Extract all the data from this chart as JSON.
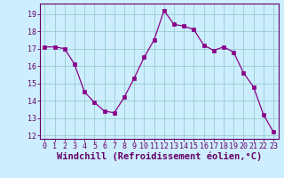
{
  "x": [
    0,
    1,
    2,
    3,
    4,
    5,
    6,
    7,
    8,
    9,
    10,
    11,
    12,
    13,
    14,
    15,
    16,
    17,
    18,
    19,
    20,
    21,
    22,
    23
  ],
  "y": [
    17.1,
    17.1,
    17.0,
    16.1,
    14.5,
    13.9,
    13.4,
    13.3,
    14.2,
    15.3,
    16.5,
    17.5,
    19.2,
    18.4,
    18.3,
    18.1,
    17.2,
    16.9,
    17.1,
    16.8,
    15.6,
    14.8,
    13.2,
    12.2
  ],
  "line_color": "#880088",
  "marker": "s",
  "marker_size": 2.5,
  "bg_color": "#cceeff",
  "grid_color": "#99cccc",
  "xlabel": "Windchill (Refroidissement éolien,°C)",
  "ylim": [
    11.8,
    19.6
  ],
  "yticks": [
    12,
    13,
    14,
    15,
    16,
    17,
    18,
    19
  ],
  "xticks": [
    0,
    1,
    2,
    3,
    4,
    5,
    6,
    7,
    8,
    9,
    10,
    11,
    12,
    13,
    14,
    15,
    16,
    17,
    18,
    19,
    20,
    21,
    22,
    23
  ],
  "xtick_labels": [
    "0",
    "1",
    "2",
    "3",
    "4",
    "5",
    "6",
    "7",
    "8",
    "9",
    "10",
    "11",
    "12",
    "13",
    "14",
    "15",
    "16",
    "17",
    "18",
    "19",
    "20",
    "21",
    "22",
    "23"
  ],
  "label_color": "#660066",
  "tick_fontsize": 6,
  "xlabel_fontsize": 7.5
}
